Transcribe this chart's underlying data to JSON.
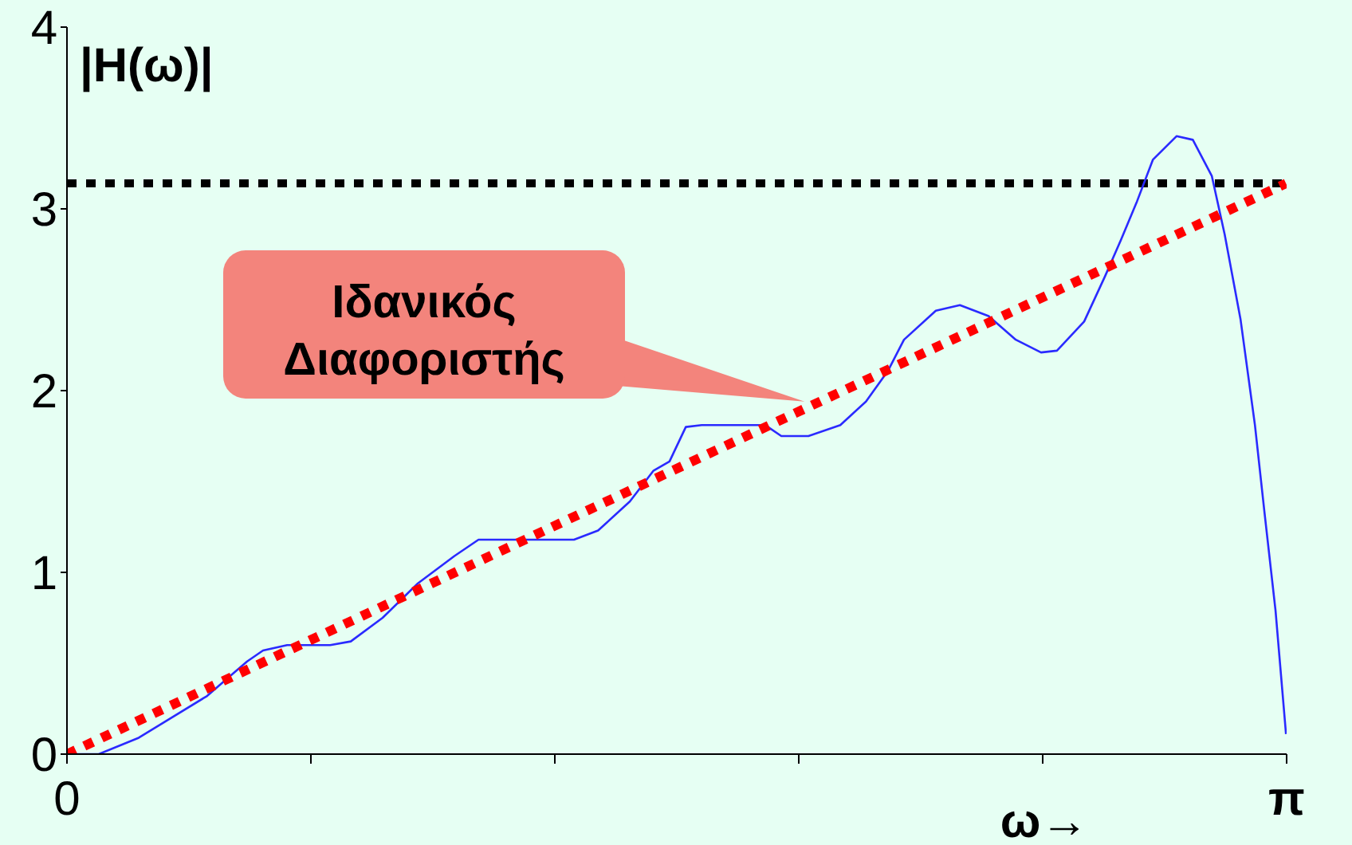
{
  "chart_data": {
    "type": "line",
    "ylabel": "|H(ω)|",
    "xlabel": "ω→",
    "xlim": [
      0,
      3.1416
    ],
    "xticks": [
      {
        "value": 0,
        "label": "0"
      },
      {
        "value": 0.6283,
        "label": null
      },
      {
        "value": 1.2566,
        "label": null
      },
      {
        "value": 1.885,
        "label": null
      },
      {
        "value": 2.5133,
        "label": null
      },
      {
        "value": 3.1416,
        "label": "π"
      }
    ],
    "ylim": [
      0,
      4
    ],
    "yticks": [
      0,
      1,
      2,
      3,
      4
    ],
    "series": [
      {
        "color": "#2a2aff",
        "line_style": "solid",
        "x": [
          0,
          0.082,
          0.185,
          0.238,
          0.361,
          0.415,
          0.464,
          0.505,
          0.567,
          0.678,
          0.731,
          0.813,
          0.904,
          0.998,
          1.06,
          1.162,
          1.306,
          1.368,
          1.45,
          1.511,
          1.552,
          1.594,
          1.635,
          1.799,
          1.84,
          1.91,
          1.992,
          2.058,
          2.115,
          2.156,
          2.238,
          2.3,
          2.374,
          2.444,
          2.509,
          2.55,
          2.62,
          2.674,
          2.715,
          2.756,
          2.797,
          2.858,
          2.9,
          2.949,
          2.982,
          3.023,
          3.06,
          3.084,
          3.113,
          3.14
        ],
        "values": [
          0,
          0,
          0.09,
          0.16,
          0.32,
          0.42,
          0.51,
          0.57,
          0.6,
          0.6,
          0.62,
          0.75,
          0.94,
          1.09,
          1.18,
          1.18,
          1.18,
          1.23,
          1.39,
          1.56,
          1.61,
          1.8,
          1.81,
          1.81,
          1.75,
          1.75,
          1.81,
          1.94,
          2.11,
          2.28,
          2.44,
          2.47,
          2.41,
          2.28,
          2.21,
          2.22,
          2.38,
          2.63,
          2.83,
          3.04,
          3.27,
          3.4,
          3.38,
          3.18,
          2.86,
          2.39,
          1.81,
          1.34,
          0.79,
          0.11
        ]
      },
      {
        "color": "#ff0000",
        "line_style": "dotted",
        "x": [
          0,
          3.14
        ],
        "values": [
          0,
          3.14
        ]
      }
    ],
    "ref_lines": [
      {
        "axis": "y",
        "value": 3.14,
        "color": "#000000",
        "line_style": "dotted"
      }
    ],
    "annotations": [
      {
        "text": "Ιδανικός Διαφοριστής",
        "x": 1.9,
        "y": 1.94
      }
    ]
  }
}
